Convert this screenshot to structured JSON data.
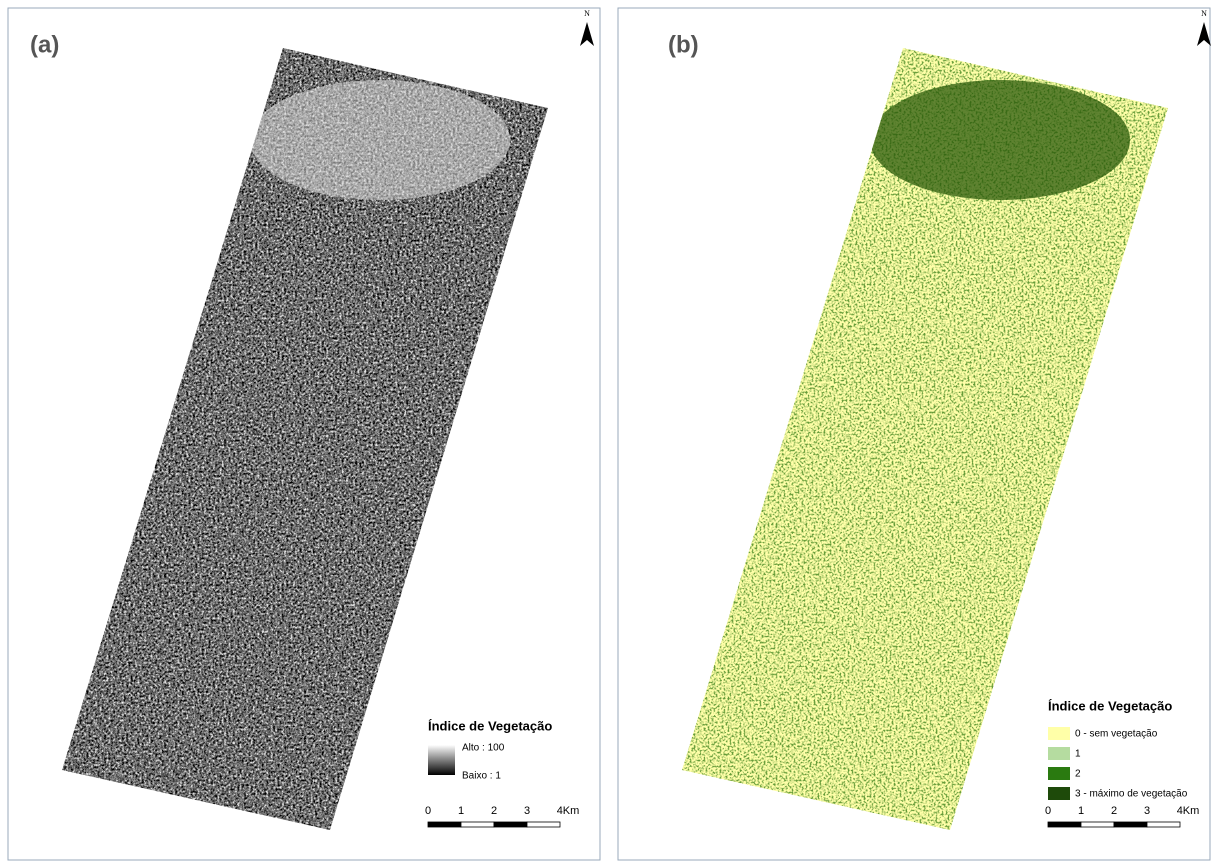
{
  "panels": [
    {
      "label": "(a)",
      "north": "N",
      "legend": {
        "title": "Índice de Vegetação",
        "items": [
          "Alto : 100",
          "Baixo : 1"
        ]
      },
      "scale": [
        "0",
        "1",
        "2",
        "3",
        "4Km"
      ]
    },
    {
      "label": "(b)",
      "north": "N",
      "legend": {
        "title": "Índice de Vegetação",
        "items": [
          "0 - sem vegetação",
          "1",
          "2",
          "3 - máximo de vegetação"
        ]
      },
      "scale": [
        "0",
        "1",
        "2",
        "3",
        "4Km"
      ]
    }
  ]
}
